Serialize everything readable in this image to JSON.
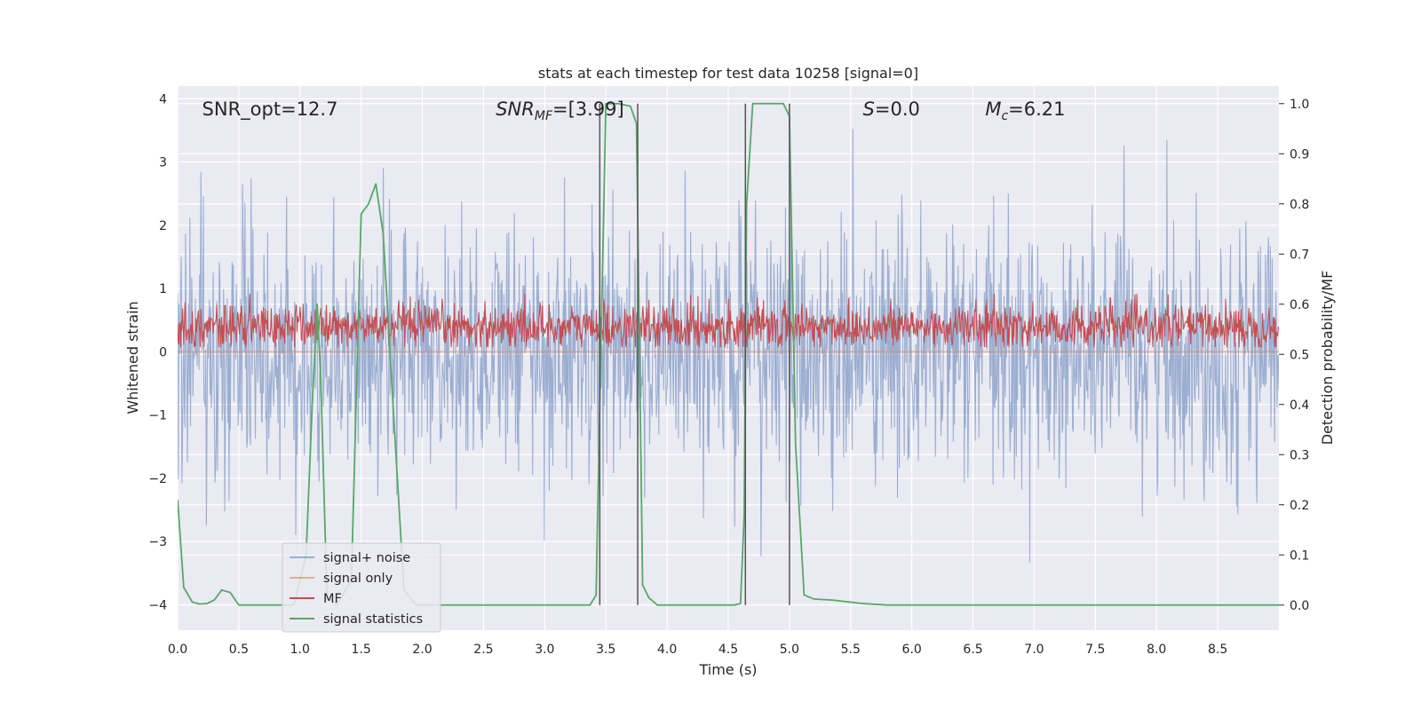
{
  "chart_data": {
    "type": "line",
    "title": "stats at each timestep for test data 10258 [signal=0]",
    "xlabel": "Time (s)",
    "ylabel": "Whitened strain",
    "ylabel_right": "Detection probability/MF",
    "xlim": [
      0.0,
      9.0
    ],
    "ylim": [
      -4.4,
      4.2
    ],
    "ylim_right": [
      -0.05,
      1.035
    ],
    "xticks": [
      0.0,
      0.5,
      1.0,
      1.5,
      2.0,
      2.5,
      3.0,
      3.5,
      4.0,
      4.5,
      5.0,
      5.5,
      6.0,
      6.5,
      7.0,
      7.5,
      8.0,
      8.5
    ],
    "xtick_labels": [
      "0.0",
      "0.5",
      "1.0",
      "1.5",
      "2.0",
      "2.5",
      "3.0",
      "3.5",
      "4.0",
      "4.5",
      "5.0",
      "5.5",
      "6.0",
      "6.5",
      "7.0",
      "7.5",
      "8.0",
      "8.5"
    ],
    "yticks": [
      -4,
      -3,
      -2,
      -1,
      0,
      1,
      2,
      3,
      4
    ],
    "ytick_labels": [
      "−4",
      "−3",
      "−2",
      "−1",
      "0",
      "1",
      "2",
      "3",
      "4"
    ],
    "yticks_right": [
      0.0,
      0.1,
      0.2,
      0.3,
      0.4,
      0.5,
      0.6,
      0.7,
      0.8,
      0.9,
      1.0
    ],
    "ytick_labels_right": [
      "0.0",
      "0.1",
      "0.2",
      "0.3",
      "0.4",
      "0.5",
      "0.6",
      "0.7",
      "0.8",
      "0.9",
      "1.0"
    ],
    "grid": true,
    "legend_position": "lower-left",
    "annotations": [
      {
        "text": "SNR_opt=12.7",
        "x": 0.2,
        "y": 3.85
      },
      {
        "text": "SNR_MF=[3.99]",
        "x": 2.6,
        "y": 3.85
      },
      {
        "text": "S=0.0",
        "x": 5.6,
        "y": 3.85
      },
      {
        "text": "M_c=6.21",
        "x": 6.6,
        "y": 3.85
      }
    ],
    "vlines": [
      3.45,
      3.76,
      4.64,
      5.0
    ],
    "series": [
      {
        "name": "signal+ noise",
        "axis": "left",
        "color": "#4c72b0",
        "alpha": 0.5,
        "kind": "noise",
        "sigma": 1.0,
        "min": -3.95,
        "max": 3.8,
        "samples": 1800
      },
      {
        "name": "signal only",
        "axis": "left",
        "color": "#dd8452",
        "alpha": 0.6,
        "x": [
          0.0,
          9.0
        ],
        "y": [
          0.0,
          0.0
        ]
      },
      {
        "name": "MF",
        "axis": "right",
        "color": "#c44e52",
        "kind": "noise",
        "center": 0.555,
        "sigma": 0.022,
        "min": 0.515,
        "max": 0.62,
        "samples": 1800
      },
      {
        "name": "signal statistics",
        "axis": "right",
        "color": "#55a868",
        "x": [
          0.0,
          0.05,
          0.12,
          0.18,
          0.24,
          0.3,
          0.36,
          0.43,
          0.5,
          0.6,
          0.8,
          0.95,
          1.05,
          1.1,
          1.14,
          1.17,
          1.22,
          1.3,
          1.42,
          1.5,
          1.56,
          1.62,
          1.68,
          1.76,
          1.85,
          1.95,
          2.2,
          3.0,
          3.37,
          3.42,
          3.45,
          3.5,
          3.6,
          3.7,
          3.75,
          3.8,
          3.85,
          3.92,
          4.0,
          4.4,
          4.55,
          4.6,
          4.63,
          4.65,
          4.7,
          4.8,
          4.95,
          5.0,
          5.05,
          5.12,
          5.2,
          5.35,
          5.6,
          5.8,
          6.2,
          7.0,
          8.0,
          9.0
        ],
        "y": [
          0.21,
          0.035,
          0.006,
          0.002,
          0.003,
          0.01,
          0.03,
          0.025,
          0.0,
          0.0,
          0.0,
          0.0,
          0.1,
          0.4,
          0.6,
          0.45,
          0.02,
          0.0,
          0.05,
          0.78,
          0.8,
          0.84,
          0.74,
          0.4,
          0.03,
          0.0,
          0.0,
          0.0,
          0.0,
          0.02,
          0.4,
          1.0,
          1.0,
          0.995,
          0.96,
          0.04,
          0.015,
          0.0,
          0.0,
          0.0,
          0.0,
          0.003,
          0.18,
          0.8,
          1.0,
          1.0,
          1.0,
          0.975,
          0.32,
          0.02,
          0.012,
          0.01,
          0.003,
          0.0,
          0.0,
          0.0,
          0.0,
          0.0
        ]
      }
    ]
  }
}
